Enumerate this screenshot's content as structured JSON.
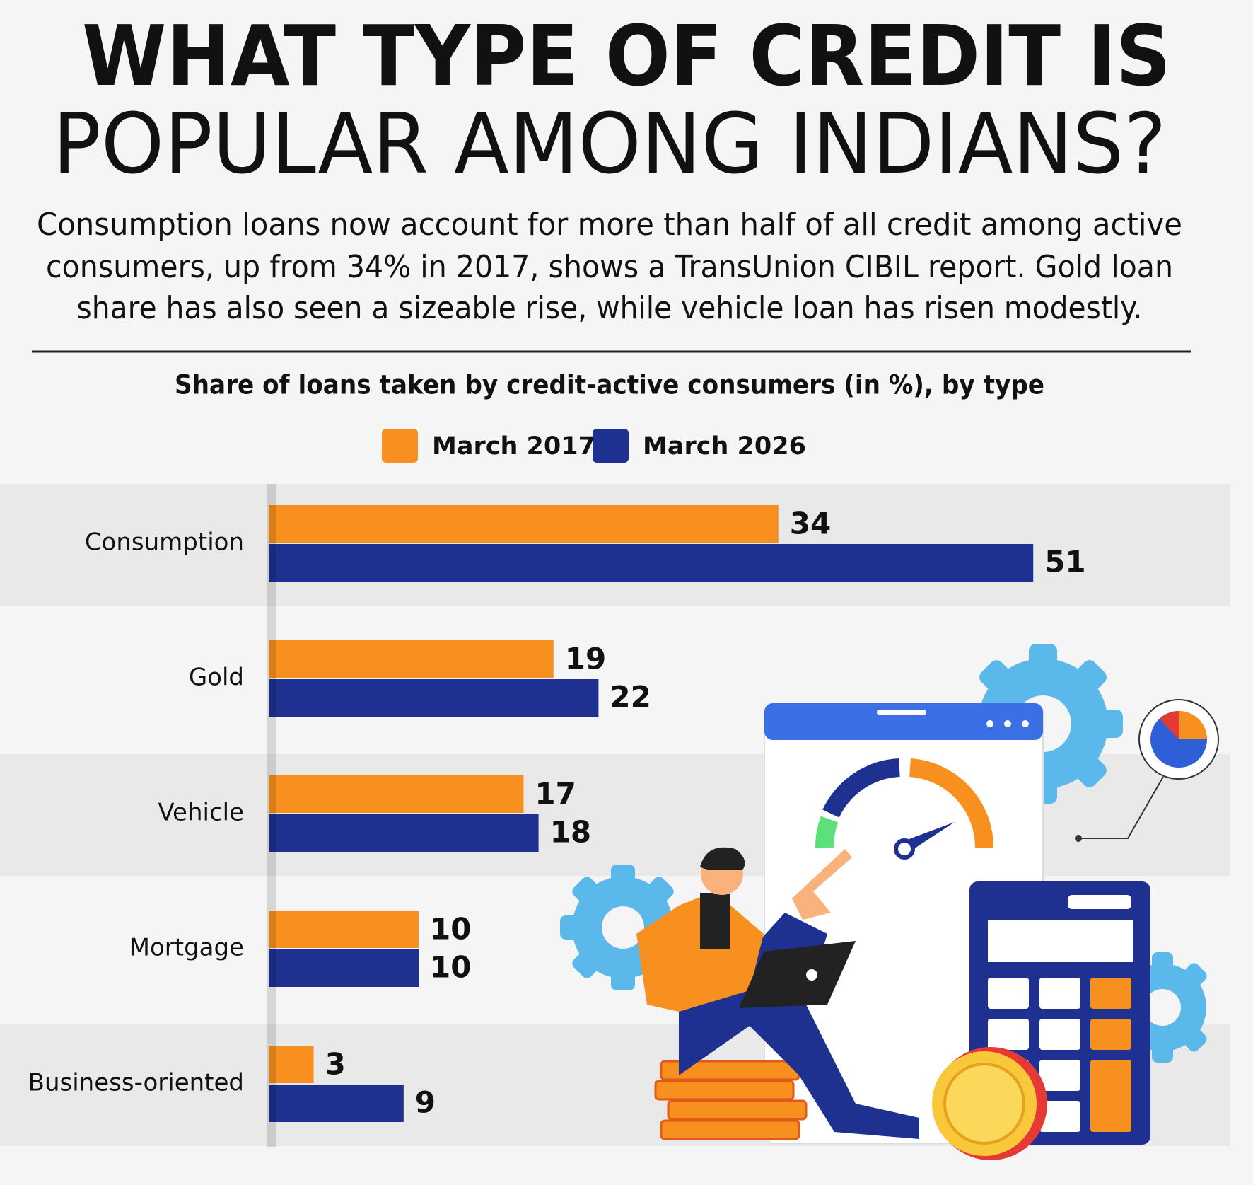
{
  "chart_data": {
    "type": "bar",
    "orientation": "horizontal",
    "title": [
      "WHAT TYPE OF CREDIT IS",
      "POPULAR AMONG INDIANS?"
    ],
    "subtitle": [
      "Consumption loans now account for more than half of all credit among active",
      "consumers, up from 34% in 2017, shows a TransUnion CIBIL report. Gold loan",
      "share has also seen a sizeable rise, while vehicle loan has risen modestly."
    ],
    "chart_title": "Share of loans taken by credit-active consumers (in %), by type",
    "categories": [
      "Consumption",
      "Gold",
      "Vehicle",
      "Mortgage",
      "Business-oriented"
    ],
    "series": [
      {
        "name": "March 2017",
        "color": "#f7901e",
        "values": [
          34,
          19,
          17,
          10,
          3
        ]
      },
      {
        "name": "March 2026",
        "color": "#1e3190",
        "values": [
          51,
          22,
          18,
          10,
          9
        ]
      }
    ]
  }
}
